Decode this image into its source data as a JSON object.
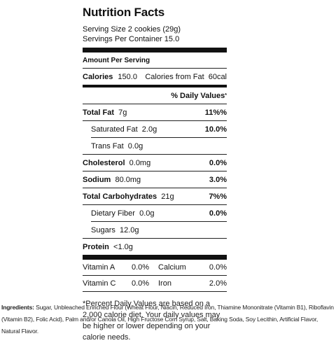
{
  "label": {
    "title": "Nutrition Facts",
    "serving_size": "Serving Size 2 cookies (29g)",
    "servings_per_container": "Servings Per Container 15.0",
    "amount_per_serving": "Amount Per Serving",
    "calories_label": "Calories",
    "calories_value": "150.0",
    "calories_fat_label": "Calories from Fat",
    "calories_fat_value": "60cal",
    "daily_values_header": "% Daily Values",
    "daily_values_star": "*",
    "nutrients": [
      {
        "name": "Total Fat",
        "amount": "7g",
        "dv": "11%%"
      },
      {
        "name": "Saturated Fat",
        "amount": "2.0g",
        "dv": "10.0%"
      },
      {
        "name": "Trans Fat",
        "amount": "0.0g",
        "dv": ""
      },
      {
        "name": "Cholesterol",
        "amount": "0.0mg",
        "dv": "0.0%"
      },
      {
        "name": "Sodium",
        "amount": "80.0mg",
        "dv": "3.0%"
      },
      {
        "name": "Total Carbohydrates",
        "amount": "21g",
        "dv": "7%%"
      },
      {
        "name": "Dietary Fiber",
        "amount": "0.0g",
        "dv": "0.0%"
      },
      {
        "name": "Sugars",
        "amount": "12.0g",
        "dv": ""
      },
      {
        "name": "Protein",
        "amount": "<1.0g",
        "dv": ""
      }
    ],
    "vitamins": [
      {
        "name1": "Vitamin A",
        "val1": "0.0%",
        "name2": "Calcium",
        "val2": "0.0%"
      },
      {
        "name1": "Vitamin C",
        "val1": "0.0%",
        "name2": "Iron",
        "val2": "2.0%"
      }
    ],
    "footnote": "*Percent Daily Values are based on a 2,000 calorie diet. Your daily values may be higher or lower depending on your calorie needs."
  },
  "ingredients": {
    "label": "Ingredients:",
    "text": "Sugar, Unbleached Enriched Flour (Wheat Flour, Niacin, Reduced Iron, Thiamine Mononitrate (Vitamin B1), Riboflavin (Vitamin B2), Folic Acid), Palm and/or Canola Oil, High Fructose Corn Syrup, Salt, Baking Soda, Soy Lecithin, Artificial Flavor, Natural Flavor."
  }
}
